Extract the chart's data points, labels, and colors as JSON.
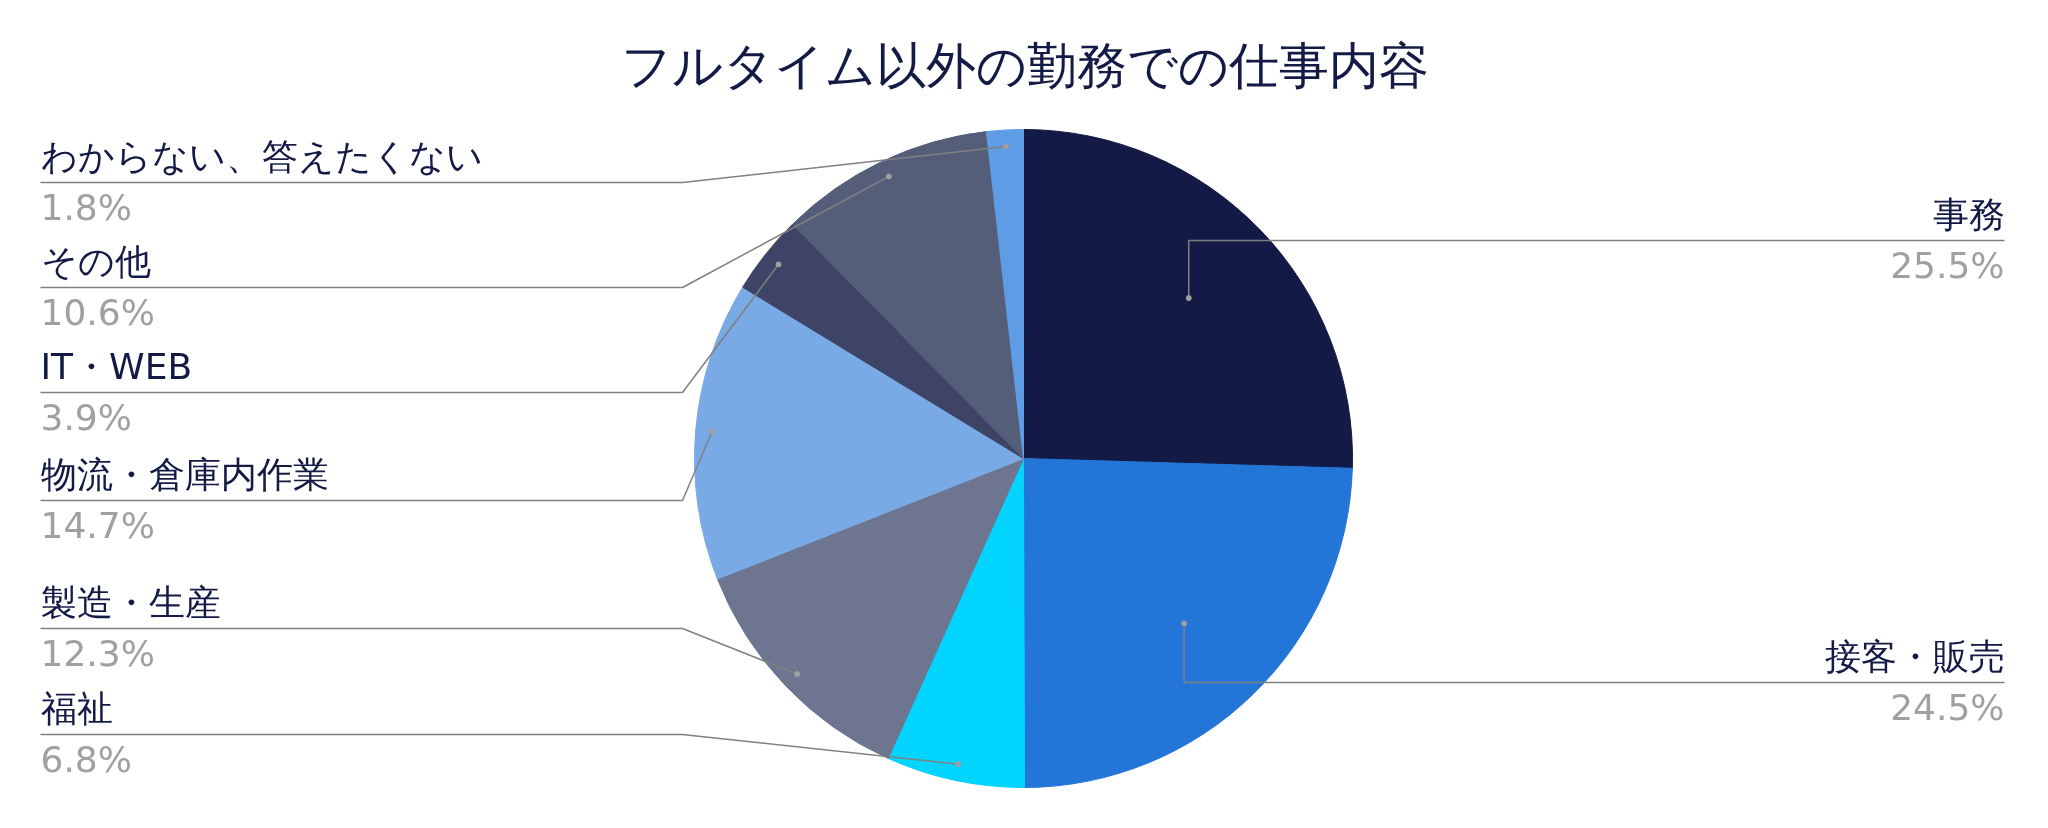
{
  "chart_data": {
    "type": "pie",
    "title": "フルタイム以外の勤務での仕事内容",
    "categories": [
      "事務",
      "接客・販売",
      "福祉",
      "製造・生産",
      "物流・倉庫内作業",
      "IT・WEB",
      "その他",
      "わからない、答えたくない"
    ],
    "values": [
      25.5,
      24.5,
      6.8,
      12.3,
      14.7,
      3.9,
      10.6,
      1.8
    ],
    "colors": [
      "#121a45",
      "#2475d8",
      "#00d4ff",
      "#6e7590",
      "#7aaae6",
      "#3d4466",
      "#555e78",
      "#5e9de6"
    ],
    "value_labels": [
      "25.5%",
      "24.5%",
      "6.8%",
      "12.3%",
      "14.7%",
      "3.9%",
      "10.6%",
      "1.8%"
    ]
  }
}
